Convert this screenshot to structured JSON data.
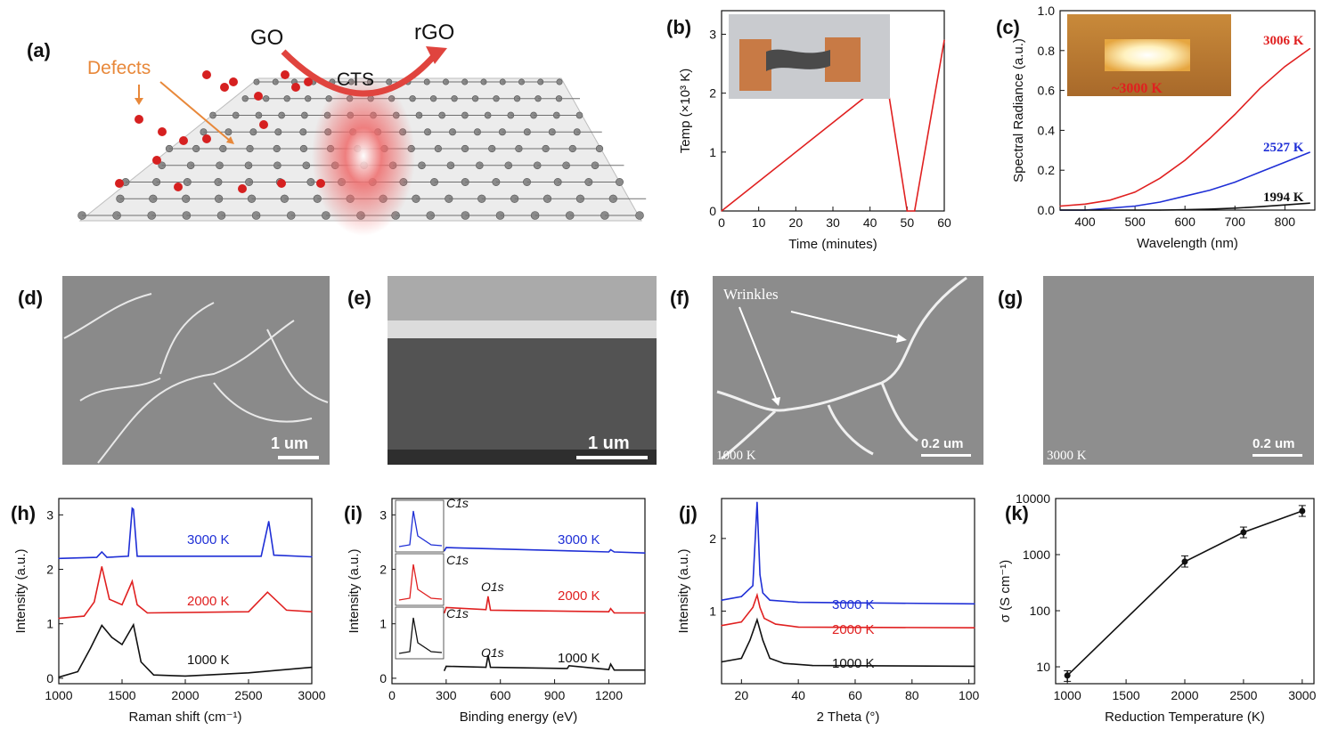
{
  "colors": {
    "red": "#e02020",
    "blue": "#1f2fd6",
    "black": "#111111",
    "orange": "#e8883a",
    "sem": "#7d7d7d"
  },
  "panels": {
    "a": "(a)",
    "b": "(b)",
    "c": "(c)",
    "d": "(d)",
    "e": "(e)",
    "f": "(f)",
    "g": "(g)",
    "h": "(h)",
    "i": "(i)",
    "j": "(j)",
    "k": "(k)"
  },
  "schematic": {
    "go": "GO",
    "rgo": "rGO",
    "cts": "CTS",
    "defects": "Defects"
  },
  "sem": {
    "d": {
      "scale": "1 um"
    },
    "e": {
      "scale": "1 um"
    },
    "f": {
      "scale": "0.2 um",
      "temp": "1000 K",
      "annotation": "Wrinkles"
    },
    "g": {
      "scale": "0.2 um",
      "temp": "3000 K"
    }
  },
  "chart_data": [
    {
      "id": "b",
      "type": "line",
      "xlabel": "Time (minutes)",
      "ylabel": "Temp (×10³ K)",
      "xlim": [
        0,
        60
      ],
      "ylim": [
        0,
        3.4
      ],
      "xticks": [
        0,
        10,
        20,
        30,
        40,
        50,
        60
      ],
      "yticks": [
        0,
        1,
        2,
        3
      ],
      "series": [
        {
          "color": "#e02020",
          "x": [
            0,
            40,
            45,
            50,
            52,
            60
          ],
          "y": [
            0,
            2,
            2,
            0,
            0,
            2.9
          ]
        }
      ]
    },
    {
      "id": "c",
      "type": "line",
      "xlabel": "Wavelength (nm)",
      "ylabel": "Spectral Radiance (a.u.)",
      "xlim": [
        350,
        860
      ],
      "ylim": [
        0,
        1.0
      ],
      "xticks": [
        400,
        500,
        600,
        700,
        800
      ],
      "yticks": [
        0.0,
        0.2,
        0.4,
        0.6,
        0.8,
        1.0
      ],
      "inset_label": "~3000 K",
      "series": [
        {
          "name": "3006 K",
          "color": "#e02020",
          "x": [
            350,
            400,
            450,
            500,
            550,
            600,
            650,
            700,
            750,
            800,
            850
          ],
          "y": [
            0.02,
            0.03,
            0.05,
            0.09,
            0.16,
            0.25,
            0.36,
            0.48,
            0.61,
            0.72,
            0.81
          ]
        },
        {
          "name": "2527 K",
          "color": "#1f2fd6",
          "x": [
            350,
            400,
            450,
            500,
            550,
            600,
            650,
            700,
            750,
            800,
            850
          ],
          "y": [
            0.0,
            0.0,
            0.01,
            0.02,
            0.04,
            0.07,
            0.1,
            0.14,
            0.19,
            0.24,
            0.29
          ]
        },
        {
          "name": "1994 K",
          "color": "#111111",
          "x": [
            350,
            400,
            450,
            500,
            550,
            600,
            650,
            700,
            750,
            800,
            850
          ],
          "y": [
            0,
            0,
            0,
            0,
            0,
            0.002,
            0.005,
            0.01,
            0.017,
            0.026,
            0.035
          ]
        }
      ]
    },
    {
      "id": "h",
      "type": "line",
      "xlabel": "Raman shift (cm⁻¹)",
      "ylabel": "Intensity (a.u.)",
      "xlim": [
        1000,
        3000
      ],
      "ylim": [
        -0.1,
        3.3
      ],
      "xticks": [
        1000,
        1500,
        2000,
        2500,
        3000
      ],
      "yticks": [
        0,
        1,
        2,
        3
      ],
      "series": [
        {
          "name": "3000 K",
          "color": "#1f2fd6",
          "x": [
            1000,
            1300,
            1340,
            1380,
            1550,
            1580,
            1590,
            1620,
            2600,
            2660,
            2700,
            3000
          ],
          "y": [
            2.2,
            2.22,
            2.32,
            2.22,
            2.24,
            3.12,
            3.1,
            2.24,
            2.24,
            2.88,
            2.26,
            2.23
          ]
        },
        {
          "name": "2000 K",
          "color": "#e02020",
          "x": [
            1000,
            1200,
            1280,
            1340,
            1400,
            1500,
            1580,
            1620,
            1700,
            2500,
            2650,
            2800,
            3000
          ],
          "y": [
            1.1,
            1.14,
            1.4,
            2.05,
            1.45,
            1.35,
            1.78,
            1.35,
            1.2,
            1.22,
            1.58,
            1.25,
            1.22
          ]
        },
        {
          "name": "1000 K",
          "color": "#111111",
          "x": [
            1000,
            1150,
            1250,
            1340,
            1420,
            1500,
            1590,
            1650,
            1750,
            2000,
            2500,
            3000
          ],
          "y": [
            0.02,
            0.12,
            0.55,
            0.97,
            0.75,
            0.62,
            0.98,
            0.3,
            0.06,
            0.04,
            0.1,
            0.2
          ]
        }
      ]
    },
    {
      "id": "i",
      "type": "line",
      "xlabel": "Binding energy (eV)",
      "ylabel": "Intensity (a.u.)",
      "xlim": [
        0,
        1400
      ],
      "ylim": [
        -0.1,
        3.3
      ],
      "xticks": [
        0,
        300,
        600,
        900,
        1200
      ],
      "yticks": [
        0,
        1,
        2,
        3
      ],
      "peak_labels": [
        "C1s",
        "C1s",
        "O1s",
        "C1s",
        "O1s"
      ],
      "series": [
        {
          "name": "3000 K",
          "color": "#1f2fd6",
          "x": [
            290,
            300,
            1200,
            1210,
            1230,
            1400
          ],
          "y": [
            2.34,
            2.4,
            2.32,
            2.36,
            2.32,
            2.3
          ]
        },
        {
          "name": "2000 K",
          "color": "#e02020",
          "x": [
            290,
            300,
            520,
            532,
            545,
            1200,
            1210,
            1230,
            1400
          ],
          "y": [
            1.2,
            1.3,
            1.26,
            1.5,
            1.25,
            1.22,
            1.28,
            1.2,
            1.2
          ]
        },
        {
          "name": "1000 K",
          "color": "#111111",
          "x": [
            290,
            300,
            520,
            532,
            545,
            970,
            980,
            1200,
            1210,
            1230,
            1400
          ],
          "y": [
            0.14,
            0.22,
            0.2,
            0.42,
            0.2,
            0.18,
            0.23,
            0.16,
            0.26,
            0.15,
            0.15
          ]
        }
      ]
    },
    {
      "id": "j",
      "type": "line",
      "xlabel": "2 Theta (°)",
      "ylabel": "Intensity (a.u.)",
      "xlim": [
        13,
        102
      ],
      "ylim": [
        0,
        2.55
      ],
      "xticks": [
        20,
        40,
        60,
        80,
        100
      ],
      "yticks": [
        1,
        2
      ],
      "series": [
        {
          "name": "3000 K",
          "color": "#1f2fd6",
          "x": [
            13,
            20,
            24,
            25.5,
            26.5,
            27.5,
            30,
            40,
            102
          ],
          "y": [
            1.15,
            1.2,
            1.35,
            2.5,
            1.5,
            1.25,
            1.15,
            1.12,
            1.1
          ]
        },
        {
          "name": "2000 K",
          "color": "#e02020",
          "x": [
            13,
            20,
            24,
            25.5,
            26.5,
            28,
            32,
            40,
            102
          ],
          "y": [
            0.8,
            0.85,
            1.05,
            1.22,
            1.05,
            0.9,
            0.82,
            0.78,
            0.77
          ]
        },
        {
          "name": "1000 K",
          "color": "#111111",
          "x": [
            13,
            20,
            23,
            25.5,
            27.5,
            30,
            35,
            45,
            102
          ],
          "y": [
            0.3,
            0.35,
            0.6,
            0.88,
            0.6,
            0.35,
            0.28,
            0.25,
            0.24
          ]
        }
      ]
    },
    {
      "id": "k",
      "type": "line",
      "scale": "log",
      "xlabel": "Reduction Temperature (K)",
      "ylabel": "σ (S cm⁻¹)",
      "xlim": [
        900,
        3100
      ],
      "ylim": [
        5,
        10000
      ],
      "xticks": [
        1000,
        1500,
        2000,
        2500,
        3000
      ],
      "yticks": [
        10,
        100,
        1000,
        10000
      ],
      "series": [
        {
          "color": "#111111",
          "x": [
            1000,
            2000,
            2500,
            3000
          ],
          "y": [
            7,
            750,
            2500,
            6000
          ],
          "err": [
            [
              5.5,
              8.5
            ],
            [
              600,
              950
            ],
            [
              2000,
              3100
            ],
            [
              4800,
              7500
            ]
          ]
        }
      ]
    }
  ]
}
